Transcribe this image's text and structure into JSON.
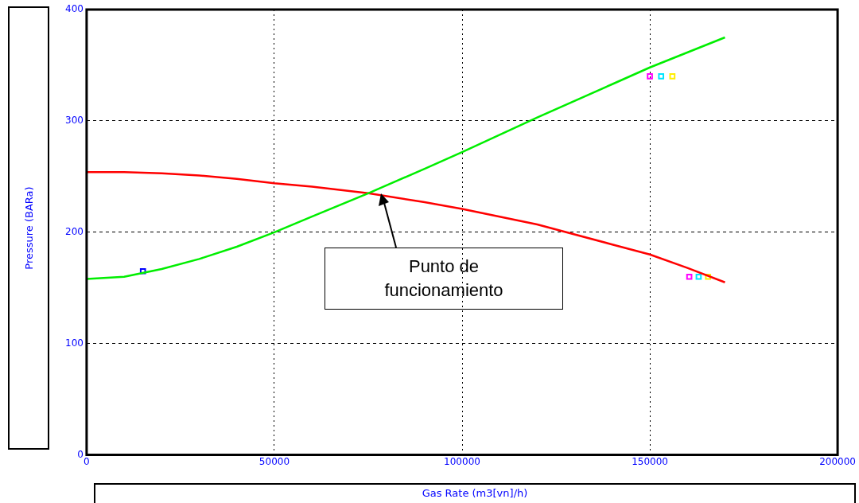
{
  "chart_data": {
    "type": "line",
    "xlabel": "Gas Rate  (m3[vn]/h)",
    "ylabel": "Pressure (BARa)",
    "xlim": [
      0,
      200000
    ],
    "xticks": [
      0,
      50000,
      100000,
      150000,
      200000
    ],
    "ylim": [
      0,
      400
    ],
    "yticks": [
      0,
      100,
      200,
      300,
      400
    ],
    "grid": true,
    "legend": false,
    "marker": "none",
    "line_style": "solid",
    "series": [
      {
        "color": "#00ee00",
        "x": [
          0,
          10000,
          20000,
          30000,
          40000,
          50000,
          60000,
          75000,
          90000,
          100000,
          120000,
          140000,
          150000,
          170000
        ],
        "values": [
          158,
          160,
          167,
          176,
          187,
          200,
          214,
          235,
          257,
          272,
          303,
          333,
          348,
          375
        ]
      },
      {
        "color": "#ff0000",
        "x": [
          0,
          10000,
          20000,
          30000,
          40000,
          50000,
          60000,
          75000,
          90000,
          100000,
          120000,
          140000,
          150000,
          160000,
          170000
        ],
        "values": [
          254,
          254,
          253,
          251,
          248,
          244,
          241,
          235,
          227,
          221,
          207,
          189,
          180,
          168,
          155
        ]
      },
      {
        "type": "scatter",
        "marker": "square",
        "color": "#0000ff",
        "x": [
          15000
        ],
        "values": [
          165
        ]
      },
      {
        "type": "scatter",
        "marker": "square",
        "color": "#ff00ff",
        "x": [
          150000,
          160500
        ],
        "values": [
          340,
          160
        ]
      },
      {
        "type": "scatter",
        "marker": "square",
        "color": "#00e5ff",
        "x": [
          153000,
          163000
        ],
        "values": [
          340,
          160
        ]
      },
      {
        "type": "scatter",
        "marker": "square",
        "color": "#ffee00",
        "x": [
          156000,
          165500
        ],
        "values": [
          340,
          160
        ]
      }
    ],
    "annotations": [
      "Punto de funcionamiento"
    ]
  }
}
